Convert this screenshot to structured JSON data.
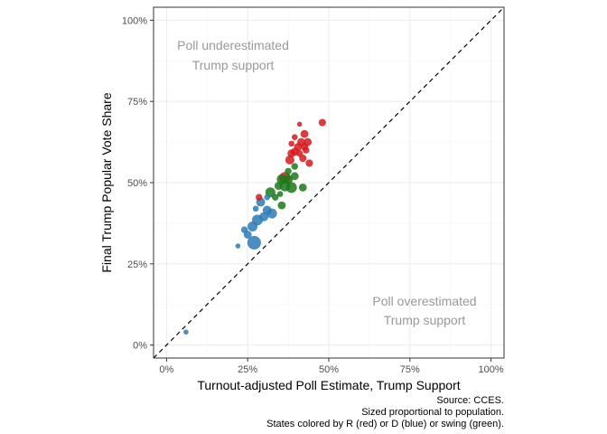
{
  "chart_data": {
    "type": "scatter",
    "xlabel": "Turnout-adjusted Poll Estimate, Trump Support",
    "ylabel": "Final Trump Popular Vote Share",
    "xlim": [
      -0.04,
      1.04
    ],
    "ylim": [
      -0.04,
      1.04
    ],
    "x_ticks": [
      0,
      0.25,
      0.5,
      0.75,
      1.0
    ],
    "x_tick_labels": [
      "0%",
      "25%",
      "50%",
      "75%",
      "100%"
    ],
    "y_ticks": [
      0,
      0.25,
      0.5,
      0.75,
      1.0
    ],
    "y_tick_labels": [
      "0%",
      "25%",
      "50%",
      "75%",
      "100%"
    ],
    "grid": true,
    "reference_line": {
      "type": "identity",
      "style": "dashed",
      "color": "#000000"
    },
    "annotations": [
      {
        "lines": [
          "Poll underestimated",
          "Trump support"
        ],
        "x": 0.2,
        "y": 0.9
      },
      {
        "lines": [
          "Poll overestimated",
          "Trump support"
        ],
        "x": 0.8,
        "y": 0.1
      }
    ],
    "caption": [
      "Source: CCES.",
      "Sized proportional to population.",
      "States colored by R (red) or D (blue) or swing (green)."
    ],
    "colors": {
      "R": "#d7191c",
      "D": "#2c7bb6",
      "swing": "#1a7a1a"
    },
    "series": [
      {
        "group": "D",
        "points": [
          {
            "x": 0.06,
            "y": 0.04,
            "size": 1
          },
          {
            "x": 0.22,
            "y": 0.305,
            "size": 1
          },
          {
            "x": 0.25,
            "y": 0.34,
            "size": 3
          },
          {
            "x": 0.27,
            "y": 0.315,
            "size": 10
          },
          {
            "x": 0.265,
            "y": 0.365,
            "size": 5
          },
          {
            "x": 0.28,
            "y": 0.385,
            "size": 6
          },
          {
            "x": 0.275,
            "y": 0.42,
            "size": 1.5
          },
          {
            "x": 0.3,
            "y": 0.395,
            "size": 4
          },
          {
            "x": 0.31,
            "y": 0.415,
            "size": 4
          },
          {
            "x": 0.325,
            "y": 0.405,
            "size": 5
          },
          {
            "x": 0.29,
            "y": 0.44,
            "size": 4
          },
          {
            "x": 0.31,
            "y": 0.455,
            "size": 1.5
          },
          {
            "x": 0.24,
            "y": 0.355,
            "size": 2
          }
        ]
      },
      {
        "group": "swing",
        "points": [
          {
            "x": 0.32,
            "y": 0.47,
            "size": 5
          },
          {
            "x": 0.335,
            "y": 0.455,
            "size": 2
          },
          {
            "x": 0.345,
            "y": 0.49,
            "size": 3
          },
          {
            "x": 0.355,
            "y": 0.51,
            "size": 5
          },
          {
            "x": 0.365,
            "y": 0.49,
            "size": 6
          },
          {
            "x": 0.375,
            "y": 0.51,
            "size": 4
          },
          {
            "x": 0.385,
            "y": 0.485,
            "size": 6
          },
          {
            "x": 0.395,
            "y": 0.52,
            "size": 3
          },
          {
            "x": 0.355,
            "y": 0.43,
            "size": 3
          },
          {
            "x": 0.42,
            "y": 0.485,
            "size": 3
          },
          {
            "x": 0.35,
            "y": 0.465,
            "size": 1.5
          },
          {
            "x": 0.375,
            "y": 0.535,
            "size": 2
          },
          {
            "x": 0.395,
            "y": 0.55,
            "size": 2
          }
        ]
      },
      {
        "group": "R",
        "points": [
          {
            "x": 0.285,
            "y": 0.455,
            "size": 2
          },
          {
            "x": 0.365,
            "y": 0.515,
            "size": 7
          },
          {
            "x": 0.38,
            "y": 0.57,
            "size": 4
          },
          {
            "x": 0.385,
            "y": 0.59,
            "size": 3
          },
          {
            "x": 0.395,
            "y": 0.595,
            "size": 3
          },
          {
            "x": 0.405,
            "y": 0.61,
            "size": 3
          },
          {
            "x": 0.415,
            "y": 0.625,
            "size": 3
          },
          {
            "x": 0.425,
            "y": 0.61,
            "size": 2.5
          },
          {
            "x": 0.41,
            "y": 0.59,
            "size": 2
          },
          {
            "x": 0.42,
            "y": 0.575,
            "size": 2.5
          },
          {
            "x": 0.43,
            "y": 0.6,
            "size": 2
          },
          {
            "x": 0.425,
            "y": 0.65,
            "size": 3
          },
          {
            "x": 0.435,
            "y": 0.625,
            "size": 3
          },
          {
            "x": 0.41,
            "y": 0.68,
            "size": 1
          },
          {
            "x": 0.48,
            "y": 0.685,
            "size": 2.5
          },
          {
            "x": 0.385,
            "y": 0.62,
            "size": 1.5
          },
          {
            "x": 0.44,
            "y": 0.56,
            "size": 2.5
          },
          {
            "x": 0.395,
            "y": 0.64,
            "size": 1.5
          }
        ]
      }
    ]
  }
}
